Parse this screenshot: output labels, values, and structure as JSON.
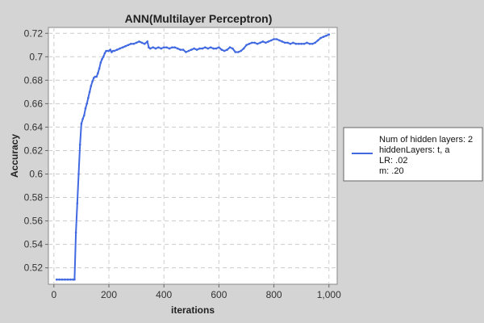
{
  "chart_data": {
    "type": "line",
    "title": "ANN(Multilayer Perceptron)",
    "xlabel": "iterations",
    "ylabel": "Accuracy",
    "xlim": [
      -20,
      1030
    ],
    "ylim": [
      0.506,
      0.725
    ],
    "x_ticks": [
      0,
      200,
      400,
      600,
      800,
      1000
    ],
    "x_tick_labels": [
      "0",
      "200",
      "400",
      "600",
      "800",
      "1,000"
    ],
    "y_ticks": [
      0.52,
      0.54,
      0.56,
      0.58,
      0.6,
      0.62,
      0.64,
      0.66,
      0.68,
      0.7,
      0.72
    ],
    "y_tick_labels": [
      "0.52",
      "0.54",
      "0.56",
      "0.58",
      "0.6",
      "0.62",
      "0.64",
      "0.66",
      "0.68",
      "0.7",
      "0.72"
    ],
    "grid": true,
    "legend_position": "right",
    "line_color": "#4169e1",
    "series": [
      {
        "legend_lines": [
          "Num of hidden layers: 2",
          "hiddenLayers: t, a",
          "LR: .02",
          "m: .20"
        ],
        "x": [
          10,
          20,
          30,
          40,
          50,
          60,
          70,
          75,
          80,
          85,
          90,
          95,
          100,
          105,
          110,
          115,
          120,
          125,
          130,
          135,
          140,
          145,
          150,
          155,
          160,
          165,
          170,
          175,
          180,
          185,
          190,
          195,
          200,
          205,
          210,
          215,
          220,
          230,
          240,
          250,
          260,
          270,
          280,
          290,
          300,
          310,
          320,
          330,
          340,
          345,
          350,
          360,
          370,
          380,
          390,
          400,
          410,
          420,
          430,
          440,
          450,
          460,
          470,
          480,
          490,
          500,
          510,
          520,
          530,
          540,
          550,
          560,
          570,
          580,
          590,
          600,
          610,
          620,
          630,
          640,
          650,
          660,
          670,
          680,
          690,
          700,
          710,
          720,
          730,
          740,
          750,
          760,
          770,
          780,
          790,
          800,
          810,
          820,
          830,
          840,
          850,
          860,
          870,
          880,
          890,
          900,
          910,
          920,
          930,
          940,
          950,
          960,
          970,
          980,
          990,
          1000
        ],
        "values": [
          0.51,
          0.51,
          0.51,
          0.51,
          0.51,
          0.51,
          0.51,
          0.51,
          0.55,
          0.575,
          0.6,
          0.625,
          0.643,
          0.647,
          0.65,
          0.656,
          0.66,
          0.665,
          0.67,
          0.675,
          0.679,
          0.682,
          0.683,
          0.683,
          0.686,
          0.69,
          0.695,
          0.698,
          0.7,
          0.703,
          0.705,
          0.705,
          0.705,
          0.706,
          0.704,
          0.705,
          0.705,
          0.706,
          0.707,
          0.708,
          0.709,
          0.71,
          0.711,
          0.711,
          0.712,
          0.713,
          0.712,
          0.711,
          0.713,
          0.708,
          0.707,
          0.708,
          0.707,
          0.708,
          0.707,
          0.708,
          0.708,
          0.707,
          0.708,
          0.708,
          0.707,
          0.706,
          0.706,
          0.704,
          0.705,
          0.706,
          0.707,
          0.706,
          0.707,
          0.707,
          0.708,
          0.707,
          0.708,
          0.707,
          0.707,
          0.708,
          0.706,
          0.705,
          0.706,
          0.708,
          0.707,
          0.704,
          0.704,
          0.705,
          0.707,
          0.71,
          0.711,
          0.712,
          0.712,
          0.711,
          0.712,
          0.713,
          0.712,
          0.713,
          0.714,
          0.715,
          0.715,
          0.714,
          0.713,
          0.712,
          0.712,
          0.711,
          0.712,
          0.711,
          0.711,
          0.711,
          0.711,
          0.712,
          0.711,
          0.711,
          0.712,
          0.714,
          0.716,
          0.717,
          0.718,
          0.719
        ]
      }
    ]
  }
}
